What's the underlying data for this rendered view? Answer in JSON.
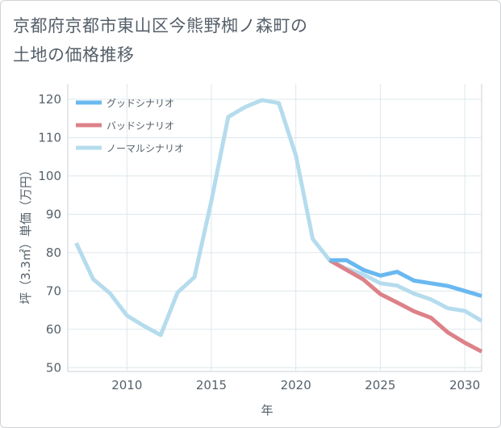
{
  "title_line1": "京都府京都市東山区今熊野椥ノ森町の",
  "title_line2": "土地の価格推移",
  "chart_data": {
    "type": "line",
    "xlabel": "年",
    "ylabel": "坪（3.3㎡）単価（万円）",
    "xlim": [
      2006.5,
      2031
    ],
    "ylim": [
      49,
      124
    ],
    "xticks": [
      2010,
      2015,
      2020,
      2025,
      2030
    ],
    "yticks": [
      50,
      60,
      70,
      80,
      90,
      100,
      110,
      120
    ],
    "grid": true,
    "legend_position": "top-left",
    "series": [
      {
        "name": "グッドシナリオ",
        "color": "#6ab8f0",
        "x": [
          2022,
          2023,
          2024,
          2025,
          2026,
          2027,
          2028,
          2029,
          2030,
          2031
        ],
        "values": [
          78,
          78,
          75.5,
          74,
          75,
          72.7,
          72,
          71.3,
          70,
          68.7
        ]
      },
      {
        "name": "バッドシナリオ",
        "color": "#dd8189",
        "x": [
          2022,
          2023,
          2024,
          2025,
          2026,
          2027,
          2028,
          2029,
          2030,
          2031
        ],
        "values": [
          78,
          75.5,
          73,
          69.2,
          67,
          64.7,
          63,
          59.2,
          56.5,
          54.2
        ]
      },
      {
        "name": "ノーマルシナリオ",
        "color": "#b5dced",
        "x": [
          2007,
          2008,
          2009,
          2010,
          2011,
          2012,
          2013,
          2014,
          2015,
          2016,
          2017,
          2018,
          2019,
          2020,
          2021,
          2022,
          2023,
          2024,
          2025,
          2026,
          2027,
          2028,
          2029,
          2030,
          2031
        ],
        "values": [
          82.5,
          73.1,
          69.4,
          63.6,
          60.9,
          58.5,
          69.6,
          73.6,
          93.5,
          115.4,
          118,
          119.8,
          119,
          105.4,
          83.6,
          78,
          75.8,
          74.3,
          72,
          71.4,
          69.3,
          67.8,
          65.5,
          64.8,
          62.2
        ]
      }
    ]
  }
}
